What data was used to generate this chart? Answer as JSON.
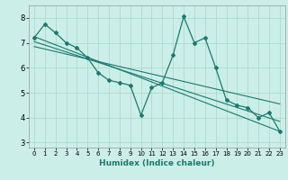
{
  "xlabel": "Humidex (Indice chaleur)",
  "bg_color": "#cceee8",
  "grid_color": "#aaddcc",
  "line_color": "#1a7a6e",
  "xlim": [
    -0.5,
    23.5
  ],
  "ylim": [
    2.8,
    8.5
  ],
  "yticks": [
    3,
    4,
    5,
    6,
    7,
    8
  ],
  "xtick_labels": [
    "0",
    "1",
    "2",
    "3",
    "4",
    "5",
    "6",
    "7",
    "8",
    "9",
    "10",
    "11",
    "12",
    "13",
    "14",
    "15",
    "16",
    "17",
    "18",
    "19",
    "20",
    "21",
    "22",
    "23"
  ],
  "series1_x": [
    0,
    1,
    2,
    3,
    4,
    5,
    6,
    7,
    8,
    9,
    10,
    11,
    12,
    13,
    14,
    15,
    16,
    17,
    18,
    19,
    20,
    21,
    22,
    23
  ],
  "series1_y": [
    7.2,
    7.75,
    7.4,
    7.0,
    6.8,
    6.4,
    5.8,
    5.5,
    5.4,
    5.3,
    4.1,
    5.2,
    5.4,
    6.5,
    8.05,
    7.0,
    7.2,
    6.0,
    4.7,
    4.5,
    4.4,
    4.0,
    4.2,
    3.45
  ],
  "trend1_x": [
    0,
    23
  ],
  "trend1_y": [
    7.25,
    3.45
  ],
  "trend2_x": [
    0,
    23
  ],
  "trend2_y": [
    7.05,
    3.85
  ],
  "trend3_x": [
    0,
    23
  ],
  "trend3_y": [
    6.85,
    4.55
  ]
}
